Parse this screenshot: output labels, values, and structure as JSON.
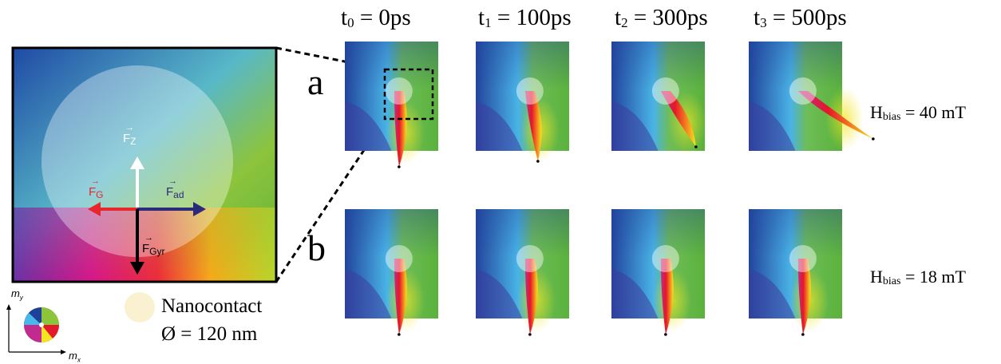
{
  "time_labels": [
    {
      "base": "t",
      "sub": "0",
      "text": " = 0ps"
    },
    {
      "base": "t",
      "sub": "1",
      "text": " = 100ps"
    },
    {
      "base": "t",
      "sub": "2",
      "text": " = 300ps"
    },
    {
      "base": "t",
      "sub": "3",
      "text": " = 500ps"
    }
  ],
  "rows": [
    {
      "label": "a",
      "field_base": "H",
      "field_sub": "bias",
      "field_text": " = 40 mT"
    },
    {
      "label": "b",
      "field_base": "H",
      "field_sub": "bias",
      "field_text": " = 18 mT"
    }
  ],
  "forces": {
    "fz": {
      "base": "F",
      "sub": "Z",
      "color": "#ffffff"
    },
    "fg": {
      "base": "F",
      "sub": "G",
      "color": "#e8262d"
    },
    "fad": {
      "base": "F",
      "sub": "ad",
      "color": "#2b2b7a"
    },
    "fgyr": {
      "base": "F",
      "sub": "Gyr",
      "color": "#000000"
    }
  },
  "legend": {
    "nanocontact_label": "Nanocontact",
    "diameter_label": "Ø = 120 nm"
  },
  "axes": {
    "my_base": "m",
    "my_sub": "y",
    "mx_base": "m",
    "mx_sub": "x"
  },
  "colors": {
    "dark_blue": "#1e3f9a",
    "light_blue": "#49b7ea",
    "green": "#5cb13a",
    "yellow": "#f3e521",
    "red": "#e5172a",
    "magenta": "#c12a8f",
    "nanocontact": "#f9f1cf"
  }
}
